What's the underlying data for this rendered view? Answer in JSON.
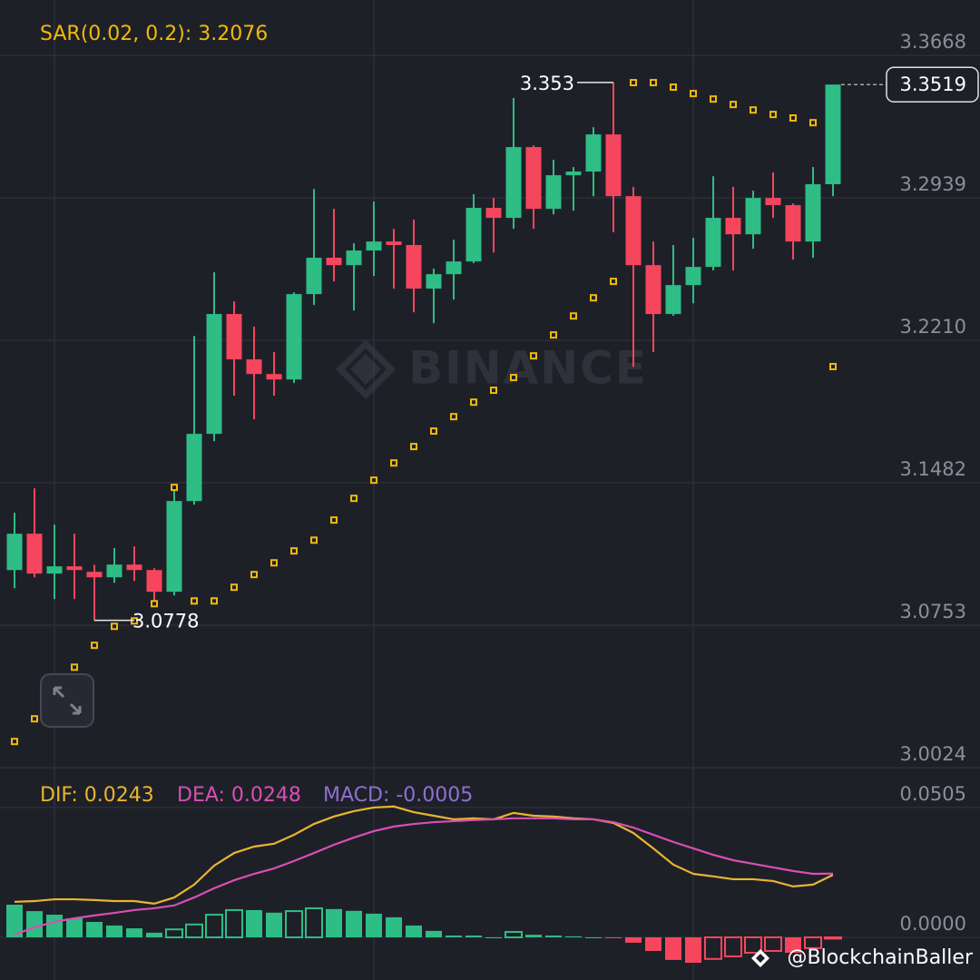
{
  "chart_data": [
    {
      "type": "candlestick",
      "legend": "SAR(0.02, 0.2): 3.2076",
      "up_color": "#2ebd85",
      "down_color": "#f6465d",
      "open": [
        3.1035,
        3.1221,
        3.1017,
        3.1054,
        3.1026,
        3.0998,
        3.1063,
        3.1035,
        3.0924,
        3.1388,
        3.1732,
        3.2345,
        3.2113,
        3.2038,
        3.201,
        3.2447,
        3.2633,
        3.2595,
        3.267,
        3.2716,
        3.2698,
        3.2475,
        3.2549,
        3.2614,
        3.2888,
        3.2837,
        3.3199,
        3.2883,
        3.3055,
        3.3074,
        3.3264,
        3.2948,
        3.2595,
        3.2345,
        3.2493,
        3.2586,
        3.2837,
        3.2753,
        3.2939,
        3.2902,
        3.2716,
        3.3009
      ],
      "high": [
        3.1328,
        3.1453,
        3.1267,
        3.1221,
        3.1062,
        3.1147,
        3.1156,
        3.1044,
        3.1472,
        3.2233,
        3.2558,
        3.241,
        3.228,
        3.215,
        3.2456,
        3.2985,
        3.2883,
        3.2707,
        3.292,
        3.2781,
        3.2828,
        3.2577,
        3.2725,
        3.2958,
        3.2939,
        3.345,
        3.3208,
        3.3134,
        3.3097,
        3.3301,
        3.353,
        3.2995,
        3.2716,
        3.2698,
        3.2735,
        3.305,
        3.2995,
        3.2976,
        3.3069,
        3.2911,
        3.3097,
        3.3519
      ],
      "low": [
        3.0942,
        3.0998,
        3.0887,
        3.0887,
        3.0778,
        3.097,
        3.0979,
        3.0877,
        3.0905,
        3.137,
        3.1695,
        3.1927,
        3.1806,
        3.1927,
        3.1992,
        3.2391,
        3.2512,
        3.2363,
        3.254,
        3.2475,
        3.2354,
        3.2298,
        3.2419,
        3.2605,
        3.266,
        3.2781,
        3.2781,
        3.2855,
        3.2874,
        3.2948,
        3.2763,
        3.2075,
        3.215,
        3.2336,
        3.24,
        3.2568,
        3.2568,
        3.2679,
        3.2837,
        3.2623,
        3.2633,
        3.2948
      ],
      "close": [
        3.1221,
        3.1017,
        3.1054,
        3.1035,
        3.0998,
        3.1063,
        3.1035,
        3.0924,
        3.1388,
        3.1732,
        3.2345,
        3.2113,
        3.2038,
        3.201,
        3.2447,
        3.2633,
        3.2595,
        3.267,
        3.2716,
        3.2698,
        3.2475,
        3.2549,
        3.2614,
        3.2888,
        3.2837,
        3.3199,
        3.2883,
        3.3055,
        3.3074,
        3.3264,
        3.2948,
        3.2595,
        3.2345,
        3.2493,
        3.2586,
        3.2837,
        3.2753,
        3.2939,
        3.2902,
        3.2716,
        3.3009,
        3.3519
      ],
      "sar": {
        "color": "#f0b90b",
        "values": [
          3.0158,
          3.0274,
          3.0413,
          3.0538,
          3.065,
          3.0747,
          3.0775,
          3.0863,
          3.1458,
          3.0877,
          3.0877,
          3.0947,
          3.1012,
          3.1072,
          3.1133,
          3.1188,
          3.1291,
          3.1402,
          3.1495,
          3.1583,
          3.1667,
          3.1746,
          3.182,
          3.1894,
          3.1955,
          3.202,
          3.2131,
          3.2238,
          3.2335,
          3.2428,
          3.2512,
          3.3529,
          3.3529,
          3.3506,
          3.3473,
          3.3445,
          3.3417,
          3.3389,
          3.3366,
          3.3348,
          3.3324,
          3.2076
        ]
      },
      "high_label_index": 30,
      "low_label_index": 4,
      "ylim": [
        3.0024,
        3.3882
      ],
      "yticks": [
        3.3668,
        3.2939,
        {
          "value": 3.221,
          "label": "3.2210"
        },
        3.1482,
        3.0753,
        3.0024
      ],
      "grid": true
    },
    {
      "type": "macd",
      "ylim": [
        -0.0166,
        0.0653
      ],
      "yticks": [
        0.0505,
        {
          "value": 0,
          "label": "0.0000"
        }
      ],
      "series": [
        {
          "name": "DIF: 0.0243",
          "type": "line",
          "color": "#e9b530",
          "values": [
            0.0138,
            0.0141,
            0.0148,
            0.0148,
            0.0145,
            0.0141,
            0.0141,
            0.0131,
            0.0155,
            0.0205,
            0.0279,
            0.0328,
            0.0353,
            0.0364,
            0.0399,
            0.0441,
            0.047,
            0.0491,
            0.0505,
            0.0509,
            0.0487,
            0.0473,
            0.0459,
            0.0463,
            0.0459,
            0.0484,
            0.0473,
            0.047,
            0.0463,
            0.0459,
            0.0445,
            0.0406,
            0.0346,
            0.0283,
            0.0247,
            0.0237,
            0.0226,
            0.0226,
            0.0219,
            0.0198,
            0.0205,
            0.0243
          ]
        },
        {
          "name": "DEA: 0.0248",
          "type": "line",
          "color": "#d84fb4",
          "values": [
            0.0011,
            0.0039,
            0.006,
            0.0074,
            0.0085,
            0.0095,
            0.0106,
            0.0113,
            0.0124,
            0.0155,
            0.0191,
            0.0222,
            0.0247,
            0.0268,
            0.0297,
            0.0328,
            0.036,
            0.0388,
            0.0413,
            0.0431,
            0.0441,
            0.0448,
            0.0452,
            0.0456,
            0.0459,
            0.0463,
            0.0463,
            0.0463,
            0.0459,
            0.0459,
            0.0448,
            0.0427,
            0.0399,
            0.0371,
            0.0346,
            0.0321,
            0.03,
            0.0286,
            0.0272,
            0.0258,
            0.0247,
            0.0248
          ]
        },
        {
          "name": "MACD: -0.0005",
          "type": "bar",
          "color": "#8f6fd3",
          "up_color": "#2ebd85",
          "down_color": "#f6465d",
          "values": [
            0.0127,
            0.0102,
            0.0088,
            0.0074,
            0.006,
            0.0046,
            0.0035,
            0.0018,
            0.0031,
            0.005,
            0.0088,
            0.0106,
            0.0106,
            0.0096,
            0.0102,
            0.0113,
            0.011,
            0.0103,
            0.0092,
            0.0078,
            0.0046,
            0.0025,
            0.0007,
            0.0007,
            0.0,
            0.0021,
            0.001,
            0.0007,
            0.0004,
            0.0,
            -0.0003,
            -0.0021,
            -0.0053,
            -0.0088,
            -0.0099,
            -0.0084,
            -0.0074,
            -0.006,
            -0.0053,
            -0.006,
            -0.0042,
            -0.0005
          ]
        }
      ]
    }
  ],
  "watermark": "BINANCE",
  "credit": "@BlockchainBaller"
}
